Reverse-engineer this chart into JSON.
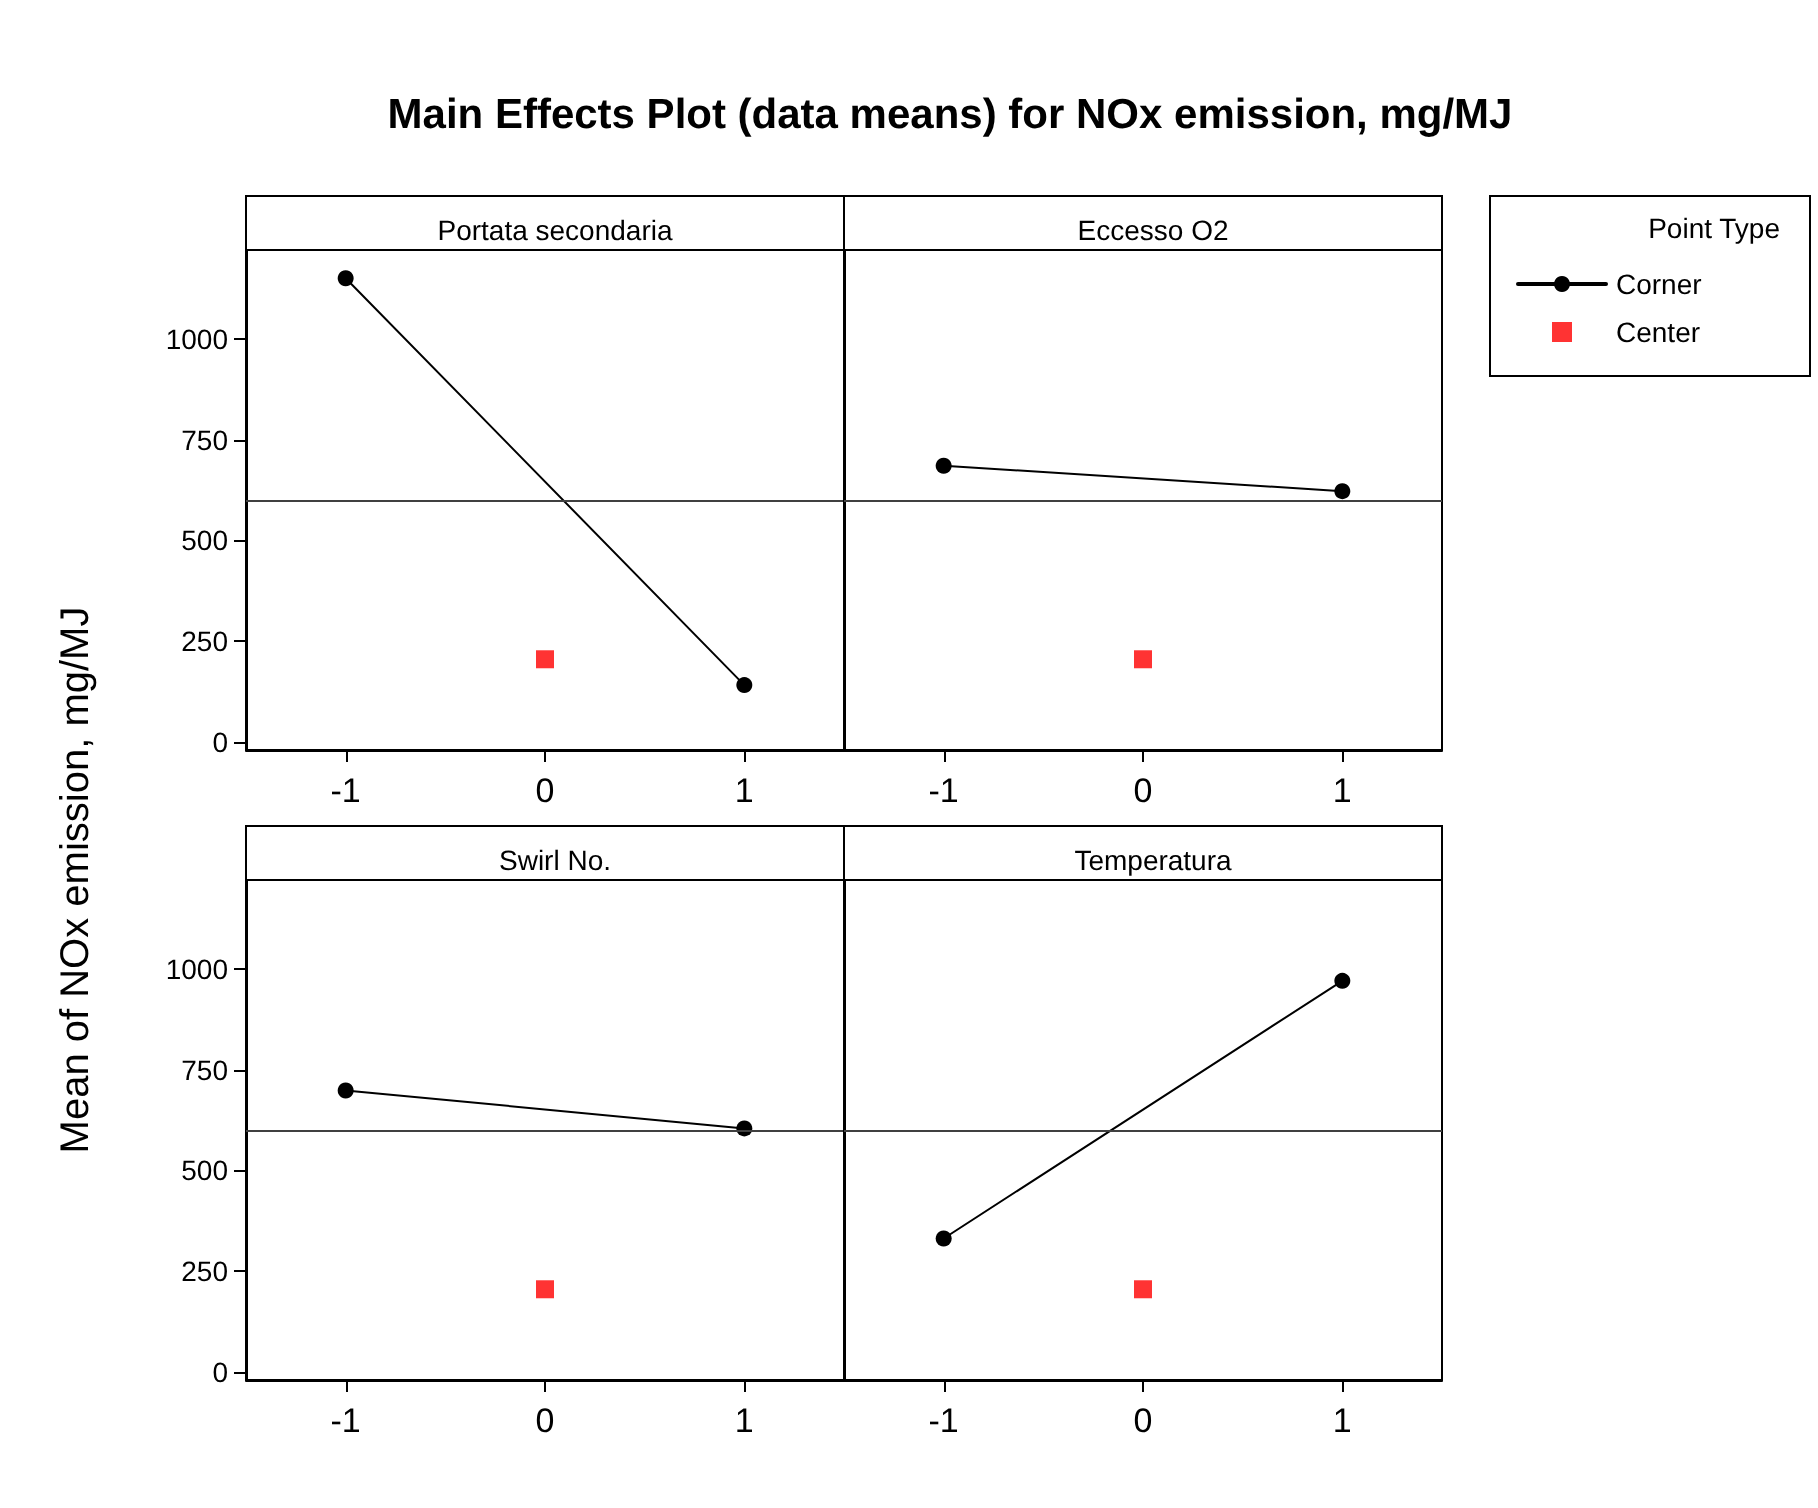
{
  "chart_data": [
    {
      "type": "line",
      "title": "Main Effects Plot (data means) for NOx emission, mg/MJ",
      "subtitle": "Portata secondaria",
      "ylabel": "Mean of NOx emission, mg/MJ",
      "legend_title": "Point Type",
      "legend": "right",
      "xlim": [
        -1.5,
        1.5
      ],
      "xticks": [
        -1,
        0,
        1
      ],
      "ylim": [
        -20,
        1220
      ],
      "yticks": [
        0,
        250,
        500,
        750,
        1000
      ],
      "ref_lines": [
        {
          "axis": "y",
          "value": 600,
          "color": "#404040"
        }
      ],
      "series": [
        {
          "name": "Corner",
          "type": "line",
          "color": "#000000",
          "marker": "circle",
          "x": [
            -1,
            1
          ],
          "values": [
            1150,
            141
          ]
        },
        {
          "name": "Center",
          "type": "scatter",
          "color": "#ff0000",
          "marker": "square",
          "x": [
            0
          ],
          "values": [
            205
          ]
        }
      ]
    },
    {
      "type": "line",
      "subtitle": "Eccesso O2",
      "tick_labels": "x",
      "xlim": [
        -1.5,
        1.5
      ],
      "xticks": [
        -1,
        0,
        1
      ],
      "ylim": [
        -20,
        1220
      ],
      "yticks": [
        0,
        250,
        500,
        750,
        1000
      ],
      "ref_lines": [
        {
          "axis": "y",
          "value": 600,
          "color": "#404040"
        }
      ],
      "series": [
        {
          "type": "line",
          "color": "#000000",
          "marker": "circle",
          "x": [
            -1,
            1
          ],
          "values": [
            685,
            622
          ]
        },
        {
          "type": "scatter",
          "color": "#ff0000",
          "marker": "square",
          "x": [
            0
          ],
          "values": [
            205
          ]
        }
      ]
    },
    {
      "type": "line",
      "subtitle": "Swirl No.",
      "xlim": [
        -1.5,
        1.5
      ],
      "xticks": [
        -1,
        0,
        1
      ],
      "ylim": [
        -20,
        1220
      ],
      "yticks": [
        0,
        250,
        500,
        750,
        1000
      ],
      "ref_lines": [
        {
          "axis": "y",
          "value": 600,
          "color": "#404040"
        }
      ],
      "series": [
        {
          "type": "line",
          "color": "#000000",
          "marker": "circle",
          "x": [
            -1,
            1
          ],
          "values": [
            698,
            604
          ]
        },
        {
          "type": "scatter",
          "color": "#ff0000",
          "marker": "square",
          "x": [
            0
          ],
          "values": [
            205
          ]
        }
      ]
    },
    {
      "type": "line",
      "subtitle": "Temperatura",
      "tick_labels": "x",
      "xlim": [
        -1.5,
        1.5
      ],
      "xticks": [
        -1,
        0,
        1
      ],
      "ylim": [
        -20,
        1220
      ],
      "yticks": [
        0,
        250,
        500,
        750,
        1000
      ],
      "ref_lines": [
        {
          "axis": "y",
          "value": 600,
          "color": "#404040"
        }
      ],
      "series": [
        {
          "type": "line",
          "color": "#000000",
          "marker": "circle",
          "x": [
            -1,
            1
          ],
          "values": [
            331,
            970
          ]
        },
        {
          "type": "scatter",
          "color": "#ff0000",
          "marker": "square",
          "x": [
            0
          ],
          "values": [
            205
          ]
        }
      ]
    }
  ]
}
